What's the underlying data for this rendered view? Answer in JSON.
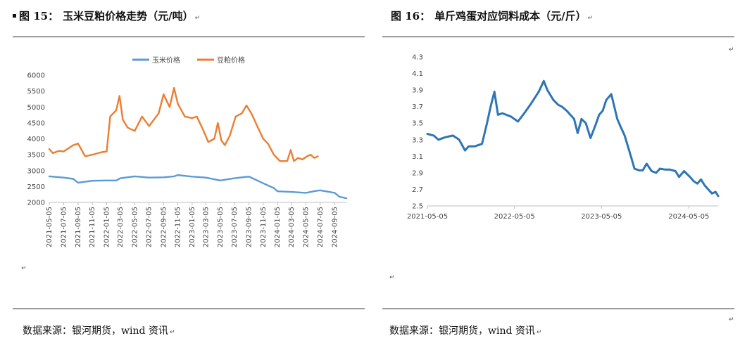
{
  "left": {
    "fig_num": "图 15：",
    "title": "玉米豆粕价格走势（元/吨）",
    "source": "数据来源：银河期货，wind 资讯"
  },
  "right": {
    "fig_num": "图 16：",
    "title": "单斤鸡蛋对应饲料成本（元/斤）",
    "source": "数据来源：银河期货，wind 资讯"
  },
  "colors": {
    "corn": "#5b9bd5",
    "soymeal": "#ed7d31",
    "egg": "#2e75b6"
  },
  "chart_data": [
    {
      "type": "line",
      "title": "",
      "xlabel": "",
      "ylabel": "",
      "ylim": [
        2000,
        6000
      ],
      "yticks": [
        2000,
        2500,
        3000,
        3500,
        4000,
        4500,
        5000,
        5500,
        6000
      ],
      "xticks": [
        "2021-05-05",
        "2021-07-05",
        "2021-09-05",
        "2021-11-05",
        "2022-01-05",
        "2022-03-05",
        "2022-05-05",
        "2022-07-05",
        "2022-09-05",
        "2022-11-05",
        "2023-01-05",
        "2023-03-05",
        "2023-05-05",
        "2023-07-05",
        "2023-09-05",
        "2023-11-05",
        "2024-01-05",
        "2024-03-05",
        "2024-05-05",
        "2024-07-05",
        "2024-09-05"
      ],
      "legend_position": "top-center",
      "grid": false,
      "series": [
        {
          "name": "玉米价格",
          "x": [
            "2021-05-05",
            "2021-07-05",
            "2021-08-15",
            "2021-09-05",
            "2021-11-05",
            "2022-01-05",
            "2022-02-15",
            "2022-03-05",
            "2022-05-05",
            "2022-07-05",
            "2022-09-05",
            "2022-10-20",
            "2022-11-05",
            "2023-01-05",
            "2023-03-05",
            "2023-05-05",
            "2023-07-05",
            "2023-08-20",
            "2023-09-05",
            "2023-11-05",
            "2023-12-20",
            "2024-01-05",
            "2024-03-05",
            "2024-05-05",
            "2024-06-15",
            "2024-07-05",
            "2024-09-05",
            "2024-09-25",
            "2024-10-25"
          ],
          "values": [
            2820,
            2780,
            2740,
            2620,
            2680,
            2690,
            2690,
            2760,
            2820,
            2780,
            2790,
            2820,
            2860,
            2810,
            2780,
            2690,
            2760,
            2800,
            2810,
            2600,
            2450,
            2350,
            2330,
            2300,
            2360,
            2380,
            2300,
            2180,
            2130
          ]
        },
        {
          "name": "豆粕价格",
          "x": [
            "2021-05-05",
            "2021-05-20",
            "2021-06-15",
            "2021-07-05",
            "2021-08-15",
            "2021-09-05",
            "2021-10-05",
            "2021-11-05",
            "2021-12-15",
            "2022-01-05",
            "2022-01-20",
            "2022-02-15",
            "2022-03-01",
            "2022-03-15",
            "2022-04-05",
            "2022-05-05",
            "2022-06-05",
            "2022-07-05",
            "2022-08-15",
            "2022-09-05",
            "2022-10-01",
            "2022-10-20",
            "2022-11-05",
            "2022-12-05",
            "2023-01-05",
            "2023-01-25",
            "2023-02-20",
            "2023-03-15",
            "2023-04-10",
            "2023-04-25",
            "2023-05-10",
            "2023-05-25",
            "2023-06-15",
            "2023-07-10",
            "2023-08-05",
            "2023-08-25",
            "2023-09-15",
            "2023-10-10",
            "2023-11-05",
            "2023-11-25",
            "2023-12-20",
            "2024-01-15",
            "2024-02-15",
            "2024-03-01",
            "2024-03-15",
            "2024-04-01",
            "2024-04-20",
            "2024-05-10",
            "2024-05-25",
            "2024-06-10",
            "2024-06-25"
          ],
          "values": [
            3680,
            3550,
            3620,
            3600,
            3800,
            3850,
            3450,
            3500,
            3580,
            3600,
            4700,
            4900,
            5350,
            4600,
            4350,
            4250,
            4700,
            4400,
            4800,
            5400,
            5000,
            5600,
            5100,
            4700,
            4650,
            4700,
            4300,
            3900,
            4000,
            4500,
            3950,
            3800,
            4100,
            4700,
            4800,
            5050,
            4800,
            4400,
            4000,
            3850,
            3500,
            3300,
            3300,
            3650,
            3300,
            3400,
            3350,
            3450,
            3500,
            3400,
            3450
          ]
        }
      ]
    },
    {
      "type": "line",
      "title": "",
      "xlabel": "",
      "ylabel": "",
      "ylim": [
        2.5,
        4.3
      ],
      "yticks": [
        2.5,
        2.7,
        2.9,
        3.1,
        3.3,
        3.5,
        3.7,
        3.9,
        4.1,
        4.3
      ],
      "xticks": [
        "2021-05-05",
        "2022-05-05",
        "2023-05-05",
        "2024-05-05"
      ],
      "legend_position": "none",
      "grid": false,
      "series": [
        {
          "x": [
            "2021-05-05",
            "2021-06-01",
            "2021-06-20",
            "2021-07-20",
            "2021-08-20",
            "2021-09-15",
            "2021-10-10",
            "2021-10-25",
            "2021-11-20",
            "2021-12-20",
            "2022-01-10",
            "2022-01-25",
            "2022-02-10",
            "2022-02-25",
            "2022-03-15",
            "2022-04-20",
            "2022-05-20",
            "2022-06-15",
            "2022-07-10",
            "2022-08-15",
            "2022-09-05",
            "2022-09-20",
            "2022-10-15",
            "2022-11-05",
            "2022-11-20",
            "2022-12-10",
            "2023-01-10",
            "2023-01-25",
            "2023-02-10",
            "2023-02-28",
            "2023-03-20",
            "2023-04-10",
            "2023-04-25",
            "2023-05-10",
            "2023-05-25",
            "2023-06-15",
            "2023-07-10",
            "2023-07-25",
            "2023-08-10",
            "2023-09-05",
            "2023-09-20",
            "2023-10-10",
            "2023-10-25",
            "2023-11-10",
            "2023-12-01",
            "2023-12-20",
            "2024-01-05",
            "2024-01-25",
            "2024-02-15",
            "2024-03-10",
            "2024-03-25",
            "2024-04-15",
            "2024-05-10",
            "2024-05-25",
            "2024-06-10",
            "2024-06-25",
            "2024-07-10",
            "2024-07-25",
            "2024-08-10",
            "2024-08-25",
            "2024-09-05"
          ],
          "values": [
            3.37,
            3.35,
            3.3,
            3.33,
            3.35,
            3.3,
            3.17,
            3.22,
            3.22,
            3.25,
            3.5,
            3.7,
            3.88,
            3.6,
            3.62,
            3.58,
            3.52,
            3.62,
            3.72,
            3.88,
            4.01,
            3.9,
            3.78,
            3.72,
            3.7,
            3.65,
            3.55,
            3.38,
            3.55,
            3.5,
            3.32,
            3.48,
            3.6,
            3.65,
            3.78,
            3.85,
            3.55,
            3.45,
            3.35,
            3.1,
            2.95,
            2.93,
            2.93,
            3.01,
            2.92,
            2.9,
            2.95,
            2.94,
            2.94,
            2.92,
            2.85,
            2.92,
            2.85,
            2.8,
            2.77,
            2.82,
            2.75,
            2.7,
            2.65,
            2.67,
            2.62
          ]
        }
      ]
    }
  ]
}
